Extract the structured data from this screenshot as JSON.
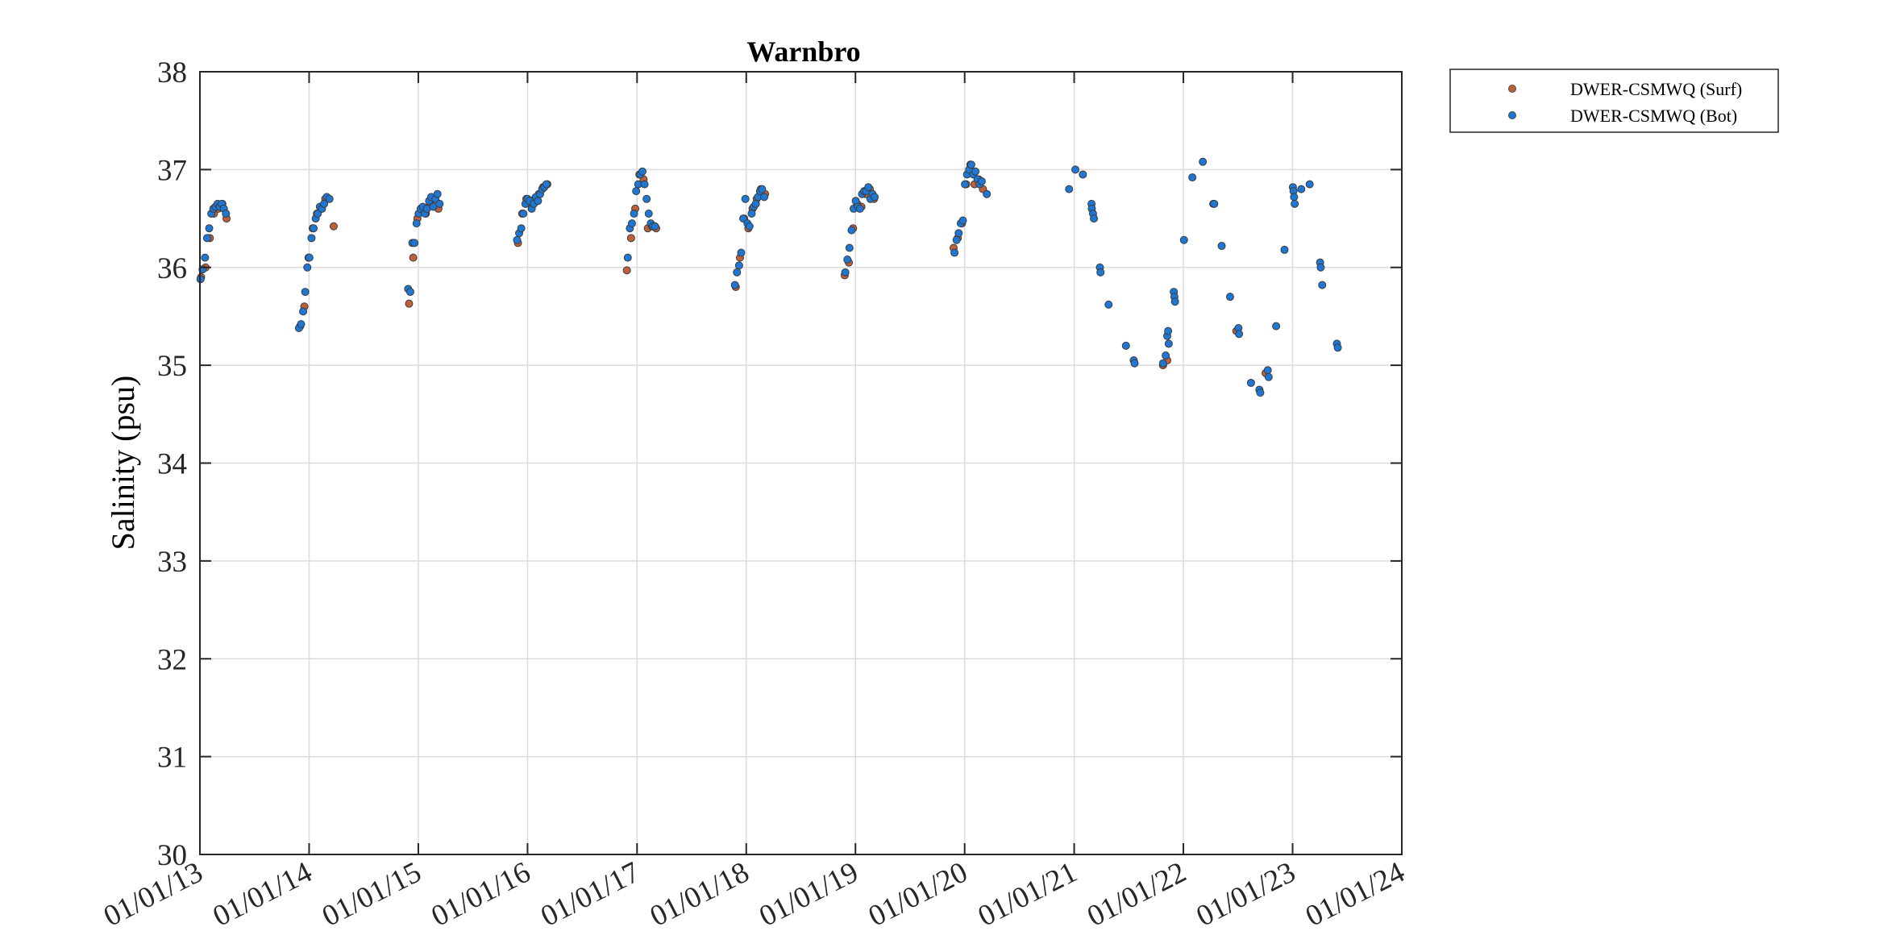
{
  "chart_data": {
    "type": "scatter",
    "title": "Warnbro",
    "xlabel": "",
    "ylabel": "Salinity (psu)",
    "ylim": [
      30,
      38
    ],
    "xlim": [
      "2013-01-01",
      "2024-01-01"
    ],
    "yticks": [
      "30",
      "31",
      "32",
      "33",
      "34",
      "35",
      "36",
      "37",
      "38"
    ],
    "xticks": [
      "01/01/13",
      "01/01/14",
      "01/01/15",
      "01/01/16",
      "01/01/17",
      "01/01/18",
      "01/01/19",
      "01/01/20",
      "01/01/21",
      "01/01/22",
      "01/01/23",
      "01/01/24"
    ],
    "grid": true,
    "legend_position": "outside-top-right",
    "series": [
      {
        "name": "DWER-CSMWQ (Surf)",
        "color": "#c0603a",
        "points": [
          [
            "2013-01-05",
            35.9
          ],
          [
            "2013-01-20",
            36.0
          ],
          [
            "2013-02-03",
            36.3
          ],
          [
            "2013-02-17",
            36.55
          ],
          [
            "2013-03-03",
            36.6
          ],
          [
            "2013-03-17",
            36.65
          ],
          [
            "2013-03-31",
            36.5
          ],
          [
            "2013-12-02",
            35.4
          ],
          [
            "2013-12-16",
            35.6
          ],
          [
            "2013-12-30",
            36.1
          ],
          [
            "2014-01-13",
            36.4
          ],
          [
            "2014-01-27",
            36.55
          ],
          [
            "2014-02-10",
            36.6
          ],
          [
            "2014-02-24",
            36.7
          ],
          [
            "2014-03-24",
            36.42
          ],
          [
            "2014-12-01",
            35.63
          ],
          [
            "2014-12-15",
            36.1
          ],
          [
            "2014-12-29",
            36.5
          ],
          [
            "2015-01-12",
            36.6
          ],
          [
            "2015-01-26",
            36.55
          ],
          [
            "2015-02-09",
            36.65
          ],
          [
            "2015-02-23",
            36.7
          ],
          [
            "2015-03-09",
            36.6
          ],
          [
            "2015-11-30",
            36.25
          ],
          [
            "2015-12-14",
            36.55
          ],
          [
            "2015-12-28",
            36.7
          ],
          [
            "2016-01-11",
            36.65
          ],
          [
            "2016-01-25",
            36.7
          ],
          [
            "2016-02-08",
            36.75
          ],
          [
            "2016-02-22",
            36.82
          ],
          [
            "2016-03-07",
            36.85
          ],
          [
            "2016-11-28",
            35.97
          ],
          [
            "2016-12-12",
            36.3
          ],
          [
            "2016-12-26",
            36.6
          ],
          [
            "2017-01-09",
            36.95
          ],
          [
            "2017-01-23",
            36.9
          ],
          [
            "2017-02-06",
            36.4
          ],
          [
            "2017-02-20",
            36.42
          ],
          [
            "2017-03-06",
            36.4
          ],
          [
            "2017-11-27",
            35.8
          ],
          [
            "2017-12-11",
            36.1
          ],
          [
            "2017-12-25",
            36.5
          ],
          [
            "2018-01-08",
            36.4
          ],
          [
            "2018-01-22",
            36.6
          ],
          [
            "2018-02-05",
            36.7
          ],
          [
            "2018-02-19",
            36.8
          ],
          [
            "2018-03-05",
            36.75
          ],
          [
            "2018-11-26",
            35.92
          ],
          [
            "2018-12-10",
            36.05
          ],
          [
            "2018-12-24",
            36.4
          ],
          [
            "2019-01-07",
            36.65
          ],
          [
            "2019-01-21",
            36.62
          ],
          [
            "2019-02-04",
            36.75
          ],
          [
            "2019-02-18",
            36.8
          ],
          [
            "2019-03-04",
            36.7
          ],
          [
            "2019-11-25",
            36.2
          ],
          [
            "2019-12-09",
            36.3
          ],
          [
            "2019-12-23",
            36.45
          ],
          [
            "2020-01-06",
            36.85
          ],
          [
            "2020-01-20",
            37.05
          ],
          [
            "2020-02-03",
            36.85
          ],
          [
            "2020-02-17",
            36.9
          ],
          [
            "2020-03-02",
            36.8
          ],
          [
            "2021-10-25",
            35.0
          ],
          [
            "2021-11-08",
            35.05
          ],
          [
            "2022-06-27",
            35.35
          ],
          [
            "2022-10-03",
            34.92
          ]
        ]
      },
      {
        "name": "DWER-CSMWQ (Bot)",
        "color": "#1f77d4",
        "points": [
          [
            "2013-01-03",
            35.88
          ],
          [
            "2013-01-10",
            35.98
          ],
          [
            "2013-01-18",
            36.1
          ],
          [
            "2013-01-25",
            36.3
          ],
          [
            "2013-02-01",
            36.4
          ],
          [
            "2013-02-08",
            36.55
          ],
          [
            "2013-02-15",
            36.6
          ],
          [
            "2013-02-22",
            36.62
          ],
          [
            "2013-03-01",
            36.65
          ],
          [
            "2013-03-08",
            36.62
          ],
          [
            "2013-03-15",
            36.65
          ],
          [
            "2013-03-22",
            36.6
          ],
          [
            "2013-03-29",
            36.55
          ],
          [
            "2013-11-28",
            35.38
          ],
          [
            "2013-12-05",
            35.42
          ],
          [
            "2013-12-12",
            35.55
          ],
          [
            "2013-12-19",
            35.75
          ],
          [
            "2013-12-26",
            36.0
          ],
          [
            "2014-01-02",
            36.1
          ],
          [
            "2014-01-09",
            36.3
          ],
          [
            "2014-01-16",
            36.4
          ],
          [
            "2014-01-23",
            36.5
          ],
          [
            "2014-01-30",
            36.55
          ],
          [
            "2014-02-06",
            36.62
          ],
          [
            "2014-02-13",
            36.6
          ],
          [
            "2014-02-20",
            36.65
          ],
          [
            "2014-03-01",
            36.72
          ],
          [
            "2014-03-10",
            36.7
          ],
          [
            "2014-11-28",
            35.78
          ],
          [
            "2014-12-05",
            35.75
          ],
          [
            "2014-12-12",
            36.25
          ],
          [
            "2014-12-19",
            36.25
          ],
          [
            "2014-12-26",
            36.45
          ],
          [
            "2015-01-02",
            36.55
          ],
          [
            "2015-01-09",
            36.6
          ],
          [
            "2015-01-16",
            36.62
          ],
          [
            "2015-01-23",
            36.55
          ],
          [
            "2015-01-30",
            36.6
          ],
          [
            "2015-02-06",
            36.68
          ],
          [
            "2015-02-13",
            36.72
          ],
          [
            "2015-02-20",
            36.62
          ],
          [
            "2015-02-27",
            36.7
          ],
          [
            "2015-03-06",
            36.75
          ],
          [
            "2015-03-13",
            36.65
          ],
          [
            "2015-11-27",
            36.28
          ],
          [
            "2015-12-04",
            36.35
          ],
          [
            "2015-12-11",
            36.4
          ],
          [
            "2015-12-18",
            36.55
          ],
          [
            "2015-12-25",
            36.65
          ],
          [
            "2016-01-01",
            36.7
          ],
          [
            "2016-01-08",
            36.68
          ],
          [
            "2016-01-15",
            36.6
          ],
          [
            "2016-01-22",
            36.65
          ],
          [
            "2016-01-29",
            36.72
          ],
          [
            "2016-02-05",
            36.68
          ],
          [
            "2016-02-12",
            36.75
          ],
          [
            "2016-02-19",
            36.8
          ],
          [
            "2016-02-26",
            36.82
          ],
          [
            "2016-03-04",
            36.85
          ],
          [
            "2016-12-01",
            36.1
          ],
          [
            "2016-12-08",
            36.4
          ],
          [
            "2016-12-15",
            36.45
          ],
          [
            "2016-12-22",
            36.55
          ],
          [
            "2016-12-29",
            36.78
          ],
          [
            "2017-01-05",
            36.85
          ],
          [
            "2017-01-12",
            36.95
          ],
          [
            "2017-01-19",
            36.98
          ],
          [
            "2017-01-26",
            36.85
          ],
          [
            "2017-02-02",
            36.7
          ],
          [
            "2017-02-09",
            36.55
          ],
          [
            "2017-02-16",
            36.45
          ],
          [
            "2017-02-23",
            36.42
          ],
          [
            "2017-03-02",
            36.42
          ],
          [
            "2017-11-24",
            35.82
          ],
          [
            "2017-12-01",
            35.95
          ],
          [
            "2017-12-08",
            36.02
          ],
          [
            "2017-12-15",
            36.15
          ],
          [
            "2017-12-22",
            36.5
          ],
          [
            "2017-12-29",
            36.7
          ],
          [
            "2018-01-05",
            36.45
          ],
          [
            "2018-01-12",
            36.42
          ],
          [
            "2018-01-19",
            36.55
          ],
          [
            "2018-01-26",
            36.62
          ],
          [
            "2018-02-02",
            36.65
          ],
          [
            "2018-02-09",
            36.72
          ],
          [
            "2018-02-16",
            36.78
          ],
          [
            "2018-02-23",
            36.8
          ],
          [
            "2018-03-02",
            36.72
          ],
          [
            "2018-11-28",
            35.95
          ],
          [
            "2018-12-05",
            36.08
          ],
          [
            "2018-12-12",
            36.2
          ],
          [
            "2018-12-19",
            36.38
          ],
          [
            "2018-12-26",
            36.6
          ],
          [
            "2019-01-02",
            36.68
          ],
          [
            "2019-01-09",
            36.62
          ],
          [
            "2019-01-16",
            36.6
          ],
          [
            "2019-01-23",
            36.75
          ],
          [
            "2019-01-30",
            36.78
          ],
          [
            "2019-02-06",
            36.78
          ],
          [
            "2019-02-13",
            36.82
          ],
          [
            "2019-02-20",
            36.7
          ],
          [
            "2019-02-27",
            36.75
          ],
          [
            "2019-03-06",
            36.72
          ],
          [
            "2019-11-28",
            36.15
          ],
          [
            "2019-12-05",
            36.28
          ],
          [
            "2019-12-12",
            36.35
          ],
          [
            "2019-12-19",
            36.45
          ],
          [
            "2019-12-26",
            36.48
          ],
          [
            "2020-01-02",
            36.85
          ],
          [
            "2020-01-09",
            36.95
          ],
          [
            "2020-01-16",
            37.0
          ],
          [
            "2020-01-23",
            37.05
          ],
          [
            "2020-01-30",
            36.95
          ],
          [
            "2020-02-06",
            36.98
          ],
          [
            "2020-02-13",
            36.9
          ],
          [
            "2020-02-20",
            36.85
          ],
          [
            "2020-02-27",
            36.88
          ],
          [
            "2020-03-15",
            36.75
          ],
          [
            "2020-12-15",
            36.8
          ],
          [
            "2021-01-05",
            37.0
          ],
          [
            "2021-01-30",
            36.95
          ],
          [
            "2021-02-28",
            36.65
          ],
          [
            "2021-03-01",
            36.6
          ],
          [
            "2021-03-05",
            36.55
          ],
          [
            "2021-03-08",
            36.5
          ],
          [
            "2021-03-28",
            36.0
          ],
          [
            "2021-03-30",
            35.95
          ],
          [
            "2021-04-26",
            35.62
          ],
          [
            "2021-06-23",
            35.2
          ],
          [
            "2021-07-19",
            35.05
          ],
          [
            "2021-07-22",
            35.02
          ],
          [
            "2021-10-25",
            35.02
          ],
          [
            "2021-11-03",
            35.1
          ],
          [
            "2021-11-08",
            35.3
          ],
          [
            "2021-11-11",
            35.35
          ],
          [
            "2021-11-13",
            35.22
          ],
          [
            "2021-11-30",
            35.75
          ],
          [
            "2021-12-02",
            35.7
          ],
          [
            "2021-12-04",
            35.65
          ],
          [
            "2022-01-03",
            36.28
          ],
          [
            "2022-01-31",
            36.92
          ],
          [
            "2022-03-07",
            37.08
          ],
          [
            "2022-04-11",
            36.65
          ],
          [
            "2022-04-14",
            36.65
          ],
          [
            "2022-05-09",
            36.22
          ],
          [
            "2022-06-06",
            35.7
          ],
          [
            "2022-07-04",
            35.38
          ],
          [
            "2022-07-06",
            35.32
          ],
          [
            "2022-08-15",
            34.82
          ],
          [
            "2022-09-12",
            34.75
          ],
          [
            "2022-09-15",
            34.72
          ],
          [
            "2022-10-10",
            34.95
          ],
          [
            "2022-10-13",
            34.88
          ],
          [
            "2022-11-07",
            35.4
          ],
          [
            "2022-12-05",
            36.18
          ],
          [
            "2023-01-02",
            36.82
          ],
          [
            "2023-01-04",
            36.78
          ],
          [
            "2023-01-06",
            36.72
          ],
          [
            "2023-01-08",
            36.65
          ],
          [
            "2023-01-30",
            36.8
          ],
          [
            "2023-02-27",
            36.85
          ],
          [
            "2023-04-03",
            36.05
          ],
          [
            "2023-04-05",
            36.0
          ],
          [
            "2023-04-10",
            35.82
          ],
          [
            "2023-05-29",
            35.22
          ],
          [
            "2023-06-01",
            35.18
          ]
        ]
      }
    ]
  }
}
